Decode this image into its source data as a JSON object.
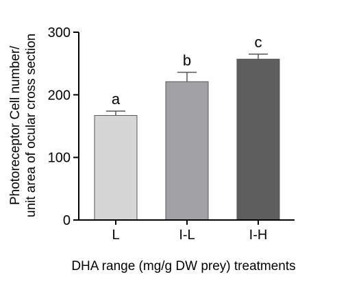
{
  "chart_data": {
    "type": "bar",
    "categories": [
      "L",
      "I-L",
      "I-H"
    ],
    "values": [
      167,
      221,
      257
    ],
    "errors": [
      7,
      15,
      8
    ],
    "significance_labels": [
      "a",
      "b",
      "c"
    ],
    "bar_colors": [
      "#d6d6d6",
      "#a2a2a6",
      "#5e5e5e"
    ],
    "xlabel": "DHA range (mg/g DW prey) treatments",
    "ylabel_lines": [
      "Photoreceptor Cell number/",
      "unit area of ocular cross section"
    ],
    "ylim": [
      0,
      300
    ],
    "yticks": [
      0,
      100,
      200,
      300
    ],
    "grid": false,
    "legend": "none"
  }
}
